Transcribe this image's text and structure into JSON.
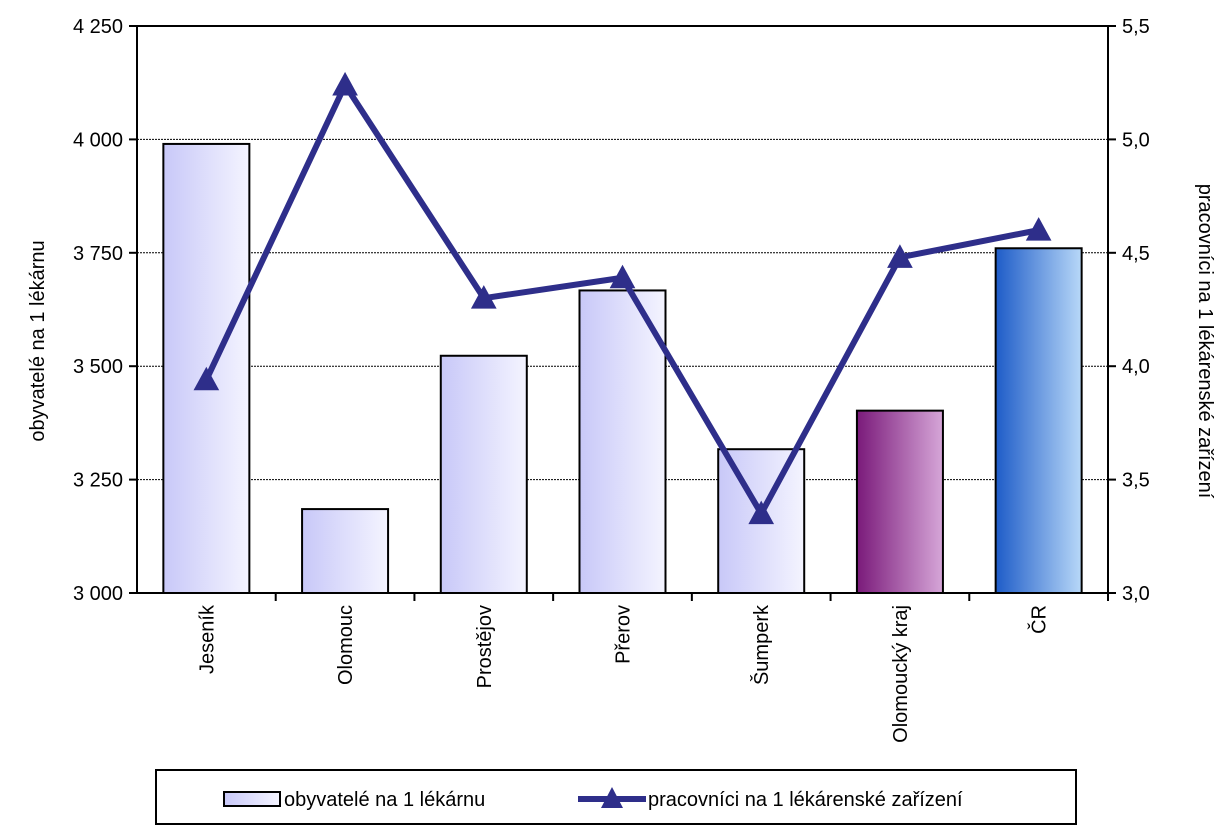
{
  "chart_data": {
    "type": "bar+line",
    "categories": [
      "Jeseník",
      "Olomouc",
      "Prostějov",
      "Přerov",
      "Šumperk",
      "Olomoucký kraj",
      "ČR"
    ],
    "series": [
      {
        "name": "obyvatelé na 1 lékárnu",
        "type": "bar",
        "axis": "left",
        "values": [
          3990,
          3185,
          3523,
          3667,
          3317,
          3402,
          3760
        ]
      },
      {
        "name": "pracovníci na 1 lékárenské zařízení",
        "type": "line",
        "axis": "right",
        "values": [
          3.94,
          5.24,
          4.3,
          4.39,
          3.35,
          4.48,
          4.6
        ]
      }
    ],
    "left_axis": {
      "label": "obyvatelé na 1 lékárnu",
      "ylim": [
        3000,
        4250
      ],
      "ticks": [
        "3 000",
        "3 250",
        "3 500",
        "3 750",
        "4 000",
        "4 250"
      ]
    },
    "right_axis": {
      "label": "pracovníci na 1 lékárenské zařízení",
      "ylim": [
        3.0,
        5.5
      ],
      "ticks": [
        "3,0",
        "3,5",
        "4,0",
        "4,5",
        "5,0",
        "5,5"
      ]
    },
    "grid": true,
    "legend_position": "bottom",
    "bar_styles": [
      "light",
      "light",
      "light",
      "light",
      "light",
      "purple",
      "blue"
    ],
    "colors": {
      "line": "#2e2e8a",
      "bar_light_start": "#c8c8f8",
      "bar_light_end": "#f4f4ff",
      "bar_purple_start": "#7a1a7a",
      "bar_purple_end": "#d6a6d8",
      "bar_blue_start": "#1e5cc8",
      "bar_blue_end": "#b8d8f8"
    }
  }
}
